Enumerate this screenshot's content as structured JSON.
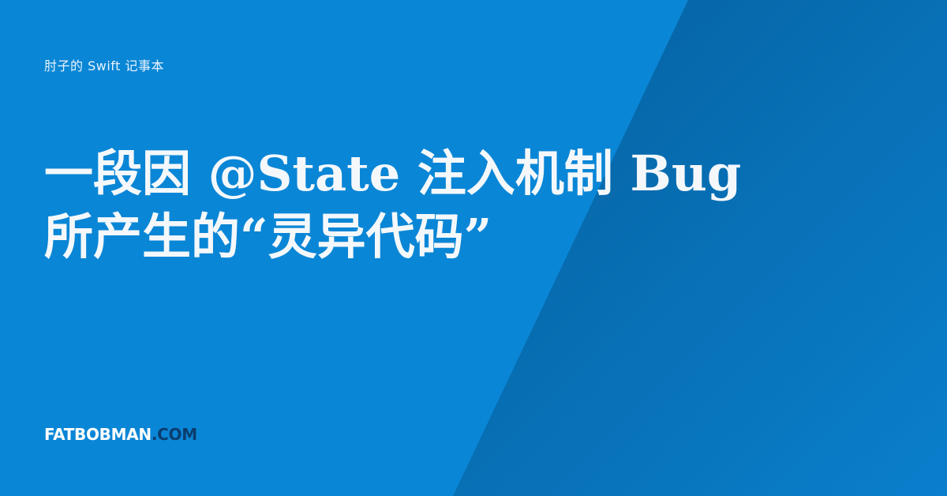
{
  "subtitle": "肘子的 Swift 记事本",
  "title": {
    "line1": "一段因 @State 注入机制 Bug",
    "line2": "所产生的“灵异代码”"
  },
  "brand": {
    "name": "FATBOBMAN",
    "tld": ".COM"
  },
  "colors": {
    "background": "#0a86d6",
    "background_dark": "#035a94",
    "text": "#f4f8fb",
    "brand_tld": "#0b3d6e"
  }
}
